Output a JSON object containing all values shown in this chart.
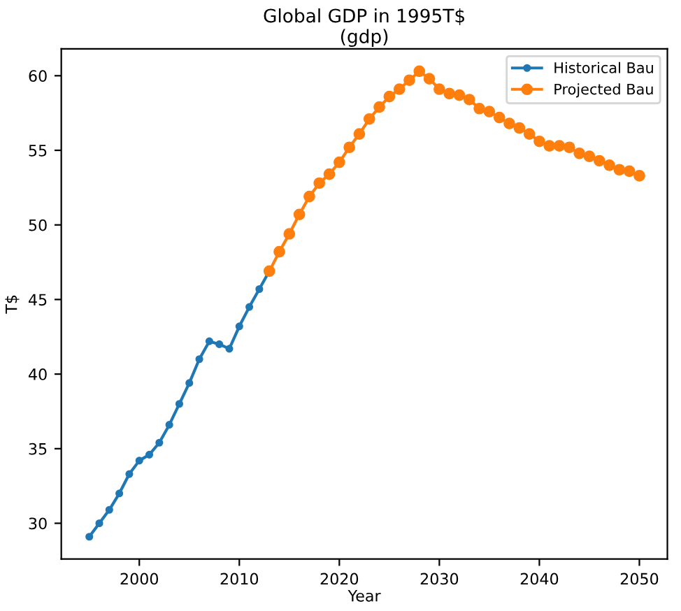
{
  "chart_data": {
    "type": "line",
    "title": "Global GDP in 1995T$\n(gdp)",
    "xlabel": "Year",
    "ylabel": "T$",
    "series": [
      {
        "name": "Historical Bau",
        "color": "#1f77b4",
        "x": [
          1995,
          1996,
          1997,
          1998,
          1999,
          2000,
          2001,
          2002,
          2003,
          2004,
          2005,
          2006,
          2007,
          2008,
          2009,
          2010,
          2011,
          2012,
          2013
        ],
        "values": [
          29.1,
          30.0,
          30.9,
          32.0,
          33.3,
          34.2,
          34.6,
          35.4,
          36.6,
          38.0,
          39.4,
          41.0,
          42.2,
          42.0,
          41.7,
          43.2,
          44.5,
          45.7,
          46.9
        ]
      },
      {
        "name": "Projected Bau",
        "color": "#ff7f0e",
        "x": [
          2013,
          2014,
          2015,
          2016,
          2017,
          2018,
          2019,
          2020,
          2021,
          2022,
          2023,
          2024,
          2025,
          2026,
          2027,
          2028,
          2029,
          2030,
          2031,
          2032,
          2033,
          2034,
          2035,
          2036,
          2037,
          2038,
          2039,
          2040,
          2041,
          2042,
          2043,
          2044,
          2045,
          2046,
          2047,
          2048,
          2049,
          2050
        ],
        "values": [
          46.9,
          48.2,
          49.4,
          50.7,
          51.9,
          52.8,
          53.4,
          54.2,
          55.2,
          56.1,
          57.1,
          57.9,
          58.6,
          59.1,
          59.7,
          60.3,
          59.8,
          59.1,
          58.8,
          58.7,
          58.4,
          57.8,
          57.6,
          57.2,
          56.8,
          56.5,
          56.1,
          55.6,
          55.3,
          55.3,
          55.2,
          54.8,
          54.6,
          54.3,
          54.0,
          53.7,
          53.6,
          53.3
        ]
      }
    ],
    "xlim": [
      1992.2,
      2052.8
    ],
    "ylim": [
      27.6,
      61.8
    ],
    "xticks": [
      2000,
      2010,
      2020,
      2030,
      2040,
      2050
    ],
    "yticks": [
      30,
      35,
      40,
      45,
      50,
      55,
      60
    ],
    "marker": "circle",
    "line_style": "solid",
    "grid": false,
    "legend": "top right"
  }
}
